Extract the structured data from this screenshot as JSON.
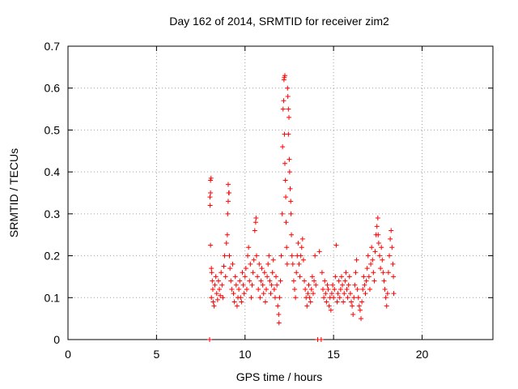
{
  "chart_data": {
    "type": "scatter",
    "title": "Day 162 of 2014, SRMTID for receiver zim2",
    "xlabel": "GPS time / hours",
    "ylabel": "SRMTID / TECUs",
    "xlim": [
      0,
      24
    ],
    "ylim": [
      0,
      0.7
    ],
    "xticks": [
      0,
      5,
      10,
      15,
      20
    ],
    "xtick_labels": [
      "0",
      "5",
      "10",
      "15",
      "20"
    ],
    "yticks": [
      0,
      0.1,
      0.2,
      0.3,
      0.4,
      0.5,
      0.6,
      0.7
    ],
    "ytick_labels": [
      "0",
      "0.1",
      "0.2",
      "0.3",
      "0.4",
      "0.5",
      "0.6",
      "0.7"
    ],
    "grid": true,
    "marker": "+",
    "color": "#ff0000",
    "series": [
      {
        "name": "zim2",
        "points": [
          [
            8.0,
            0.0
          ],
          [
            8.05,
            0.38
          ],
          [
            8.08,
            0.385
          ],
          [
            8.02,
            0.34
          ],
          [
            8.05,
            0.35
          ],
          [
            8.03,
            0.32
          ],
          [
            8.05,
            0.225
          ],
          [
            8.1,
            0.17
          ],
          [
            8.12,
            0.16
          ],
          [
            8.15,
            0.14
          ],
          [
            8.18,
            0.12
          ],
          [
            8.1,
            0.1
          ],
          [
            8.2,
            0.09
          ],
          [
            8.25,
            0.08
          ],
          [
            8.3,
            0.13
          ],
          [
            8.35,
            0.15
          ],
          [
            8.4,
            0.11
          ],
          [
            8.45,
            0.095
          ],
          [
            8.5,
            0.14
          ],
          [
            8.55,
            0.12
          ],
          [
            8.6,
            0.105
          ],
          [
            8.65,
            0.16
          ],
          [
            8.7,
            0.13
          ],
          [
            8.75,
            0.1
          ],
          [
            8.8,
            0.175
          ],
          [
            8.85,
            0.2
          ],
          [
            8.9,
            0.15
          ],
          [
            8.95,
            0.23
          ],
          [
            9.0,
            0.25
          ],
          [
            9.02,
            0.3
          ],
          [
            9.05,
            0.37
          ],
          [
            9.08,
            0.35
          ],
          [
            9.1,
            0.35
          ],
          [
            9.05,
            0.33
          ],
          [
            9.12,
            0.2
          ],
          [
            9.15,
            0.17
          ],
          [
            9.2,
            0.14
          ],
          [
            9.25,
            0.12
          ],
          [
            9.3,
            0.18
          ],
          [
            9.35,
            0.11
          ],
          [
            9.4,
            0.09
          ],
          [
            9.45,
            0.15
          ],
          [
            9.5,
            0.13
          ],
          [
            9.55,
            0.08
          ],
          [
            9.6,
            0.1
          ],
          [
            9.65,
            0.12
          ],
          [
            9.7,
            0.14
          ],
          [
            9.75,
            0.1
          ],
          [
            9.8,
            0.09
          ],
          [
            9.85,
            0.16
          ],
          [
            9.9,
            0.13
          ],
          [
            9.95,
            0.11
          ],
          [
            10.0,
            0.15
          ],
          [
            10.05,
            0.17
          ],
          [
            10.1,
            0.12
          ],
          [
            10.15,
            0.2
          ],
          [
            10.2,
            0.22
          ],
          [
            10.25,
            0.14
          ],
          [
            10.3,
            0.18
          ],
          [
            10.35,
            0.1
          ],
          [
            10.4,
            0.13
          ],
          [
            10.45,
            0.16
          ],
          [
            10.5,
            0.19
          ],
          [
            10.55,
            0.26
          ],
          [
            10.6,
            0.28
          ],
          [
            10.62,
            0.29
          ],
          [
            10.65,
            0.2
          ],
          [
            10.7,
            0.15
          ],
          [
            10.75,
            0.12
          ],
          [
            10.8,
            0.18
          ],
          [
            10.85,
            0.1
          ],
          [
            10.9,
            0.14
          ],
          [
            10.95,
            0.17
          ],
          [
            11.0,
            0.13
          ],
          [
            11.05,
            0.11
          ],
          [
            11.1,
            0.16
          ],
          [
            11.15,
            0.09
          ],
          [
            11.2,
            0.12
          ],
          [
            11.25,
            0.15
          ],
          [
            11.3,
            0.18
          ],
          [
            11.35,
            0.2
          ],
          [
            11.4,
            0.14
          ],
          [
            11.45,
            0.11
          ],
          [
            11.5,
            0.13
          ],
          [
            11.55,
            0.16
          ],
          [
            11.6,
            0.19
          ],
          [
            11.65,
            0.12
          ],
          [
            11.7,
            0.1
          ],
          [
            11.75,
            0.15
          ],
          [
            11.8,
            0.13
          ],
          [
            11.85,
            0.08
          ],
          [
            11.9,
            0.06
          ],
          [
            11.92,
            0.04
          ],
          [
            11.95,
            0.1
          ],
          [
            12.0,
            0.14
          ],
          [
            12.05,
            0.2
          ],
          [
            12.1,
            0.3
          ],
          [
            12.12,
            0.46
          ],
          [
            12.15,
            0.55
          ],
          [
            12.18,
            0.57
          ],
          [
            12.2,
            0.62
          ],
          [
            12.22,
            0.625
          ],
          [
            12.25,
            0.63
          ],
          [
            12.23,
            0.49
          ],
          [
            12.25,
            0.42
          ],
          [
            12.28,
            0.38
          ],
          [
            12.3,
            0.34
          ],
          [
            12.32,
            0.28
          ],
          [
            12.35,
            0.22
          ],
          [
            12.38,
            0.18
          ],
          [
            12.4,
            0.6
          ],
          [
            12.42,
            0.58
          ],
          [
            12.45,
            0.55
          ],
          [
            12.48,
            0.53
          ],
          [
            12.45,
            0.49
          ],
          [
            12.5,
            0.43
          ],
          [
            12.52,
            0.4
          ],
          [
            12.55,
            0.36
          ],
          [
            12.58,
            0.33
          ],
          [
            12.6,
            0.3
          ],
          [
            12.62,
            0.25
          ],
          [
            12.65,
            0.2
          ],
          [
            12.7,
            0.18
          ],
          [
            12.75,
            0.14
          ],
          [
            12.8,
            0.12
          ],
          [
            12.85,
            0.1
          ],
          [
            12.9,
            0.16
          ],
          [
            12.95,
            0.2
          ],
          [
            13.0,
            0.23
          ],
          [
            13.05,
            0.18
          ],
          [
            13.1,
            0.15
          ],
          [
            13.15,
            0.2
          ],
          [
            13.2,
            0.22
          ],
          [
            13.25,
            0.24
          ],
          [
            13.3,
            0.19
          ],
          [
            13.35,
            0.14
          ],
          [
            13.4,
            0.12
          ],
          [
            13.45,
            0.1
          ],
          [
            13.5,
            0.08
          ],
          [
            13.55,
            0.11
          ],
          [
            13.6,
            0.13
          ],
          [
            13.65,
            0.1
          ],
          [
            13.7,
            0.09
          ],
          [
            13.75,
            0.12
          ],
          [
            13.8,
            0.15
          ],
          [
            13.85,
            0.11
          ],
          [
            13.9,
            0.14
          ],
          [
            13.95,
            0.2
          ],
          [
            14.0,
            0.13
          ],
          [
            14.1,
            0.0
          ],
          [
            14.2,
            0.21
          ],
          [
            14.3,
            0.0
          ],
          [
            14.35,
            0.16
          ],
          [
            14.4,
            0.12
          ],
          [
            14.45,
            0.1
          ],
          [
            14.5,
            0.14
          ],
          [
            14.55,
            0.11
          ],
          [
            14.6,
            0.09
          ],
          [
            14.65,
            0.13
          ],
          [
            14.7,
            0.12
          ],
          [
            14.75,
            0.08
          ],
          [
            14.8,
            0.1
          ],
          [
            14.85,
            0.07
          ],
          [
            14.9,
            0.11
          ],
          [
            14.95,
            0.13
          ],
          [
            15.0,
            0.1
          ],
          [
            15.05,
            0.12
          ],
          [
            15.1,
            0.15
          ],
          [
            15.15,
            0.225
          ],
          [
            15.2,
            0.09
          ],
          [
            15.25,
            0.11
          ],
          [
            15.3,
            0.14
          ],
          [
            15.35,
            0.1
          ],
          [
            15.4,
            0.12
          ],
          [
            15.45,
            0.15
          ],
          [
            15.5,
            0.13
          ],
          [
            15.55,
            0.09
          ],
          [
            15.6,
            0.11
          ],
          [
            15.65,
            0.14
          ],
          [
            15.7,
            0.16
          ],
          [
            15.75,
            0.12
          ],
          [
            15.8,
            0.1
          ],
          [
            15.85,
            0.13
          ],
          [
            15.9,
            0.15
          ],
          [
            15.95,
            0.11
          ],
          [
            16.0,
            0.09
          ],
          [
            16.05,
            0.08
          ],
          [
            16.1,
            0.06
          ],
          [
            16.15,
            0.1
          ],
          [
            16.2,
            0.13
          ],
          [
            16.25,
            0.16
          ],
          [
            16.3,
            0.19
          ],
          [
            16.35,
            0.12
          ],
          [
            16.4,
            0.1
          ],
          [
            16.45,
            0.08
          ],
          [
            16.5,
            0.07
          ],
          [
            16.55,
            0.05
          ],
          [
            16.6,
            0.09
          ],
          [
            16.65,
            0.12
          ],
          [
            16.7,
            0.15
          ],
          [
            16.75,
            0.13
          ],
          [
            16.8,
            0.11
          ],
          [
            16.85,
            0.14
          ],
          [
            16.9,
            0.17
          ],
          [
            16.95,
            0.2
          ],
          [
            17.0,
            0.15
          ],
          [
            17.05,
            0.12
          ],
          [
            17.1,
            0.18
          ],
          [
            17.15,
            0.22
          ],
          [
            17.2,
            0.19
          ],
          [
            17.25,
            0.16
          ],
          [
            17.3,
            0.14
          ],
          [
            17.35,
            0.21
          ],
          [
            17.4,
            0.25
          ],
          [
            17.45,
            0.27
          ],
          [
            17.5,
            0.29
          ],
          [
            17.52,
            0.25
          ],
          [
            17.55,
            0.23
          ],
          [
            17.6,
            0.2
          ],
          [
            17.65,
            0.17
          ],
          [
            17.7,
            0.22
          ],
          [
            17.75,
            0.19
          ],
          [
            17.8,
            0.16
          ],
          [
            17.85,
            0.14
          ],
          [
            17.9,
            0.12
          ],
          [
            17.95,
            0.1
          ],
          [
            18.0,
            0.08
          ],
          [
            18.05,
            0.11
          ],
          [
            18.1,
            0.16
          ],
          [
            18.15,
            0.2
          ],
          [
            18.2,
            0.24
          ],
          [
            18.25,
            0.26
          ],
          [
            18.3,
            0.22
          ],
          [
            18.35,
            0.18
          ],
          [
            18.38,
            0.15
          ],
          [
            18.4,
            0.11
          ]
        ]
      }
    ]
  }
}
